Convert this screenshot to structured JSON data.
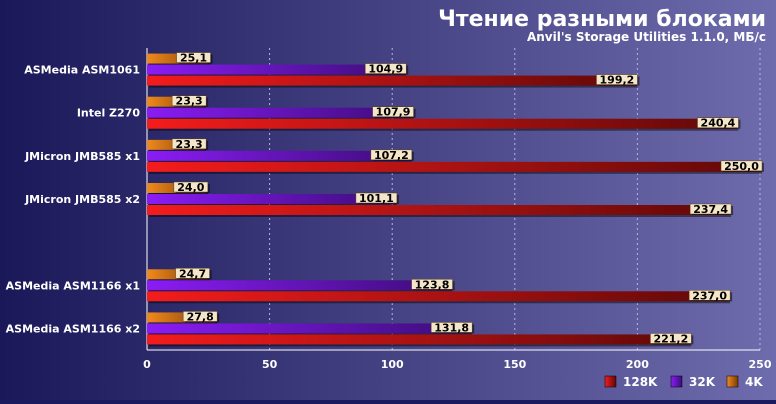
{
  "chart_data": {
    "type": "bar",
    "title": "Чтение разными блоками",
    "subtitle": "Anvil's Storage Utilities 1.1.0, МБ/с",
    "xlim": [
      0,
      250
    ],
    "x_ticks": [
      "0",
      "50",
      "100",
      "150",
      "200",
      "250"
    ],
    "x_tick_values": [
      0,
      50,
      100,
      150,
      200,
      250
    ],
    "grid": true,
    "legend_position": "bottom-right",
    "categories": [
      "ASMedia ASM1061",
      "Intel Z270",
      "JMicron JMB585 x1",
      "JMicron JMB585 x2",
      "",
      "ASMedia ASM1166 x1",
      "ASMedia ASM1166 x2"
    ],
    "series": [
      {
        "name": "4K",
        "color": "#e07818",
        "values": [
          25.1,
          23.3,
          23.3,
          24.0,
          null,
          24.7,
          27.8
        ],
        "labels": [
          "25,1",
          "23,3",
          "23,3",
          "24,0",
          "",
          "24,7",
          "27,8"
        ]
      },
      {
        "name": "32K",
        "color": "#7a18e8",
        "values": [
          104.9,
          107.9,
          107.2,
          101.1,
          null,
          123.8,
          131.8
        ],
        "labels": [
          "104,9",
          "107,9",
          "107,2",
          "101,1",
          "",
          "123,8",
          "131,8"
        ]
      },
      {
        "name": "128K",
        "color": "#e81818",
        "values": [
          199.2,
          240.4,
          250.0,
          237.4,
          null,
          237.0,
          221.2
        ],
        "labels": [
          "199,2",
          "240,4",
          "250,0",
          "237,4",
          "",
          "237,0",
          "221,2"
        ]
      }
    ],
    "legend": [
      {
        "name": "128K",
        "color": "#e81818"
      },
      {
        "name": "32K",
        "color": "#7a18e8"
      },
      {
        "name": "4K",
        "color": "#e07818"
      }
    ]
  }
}
